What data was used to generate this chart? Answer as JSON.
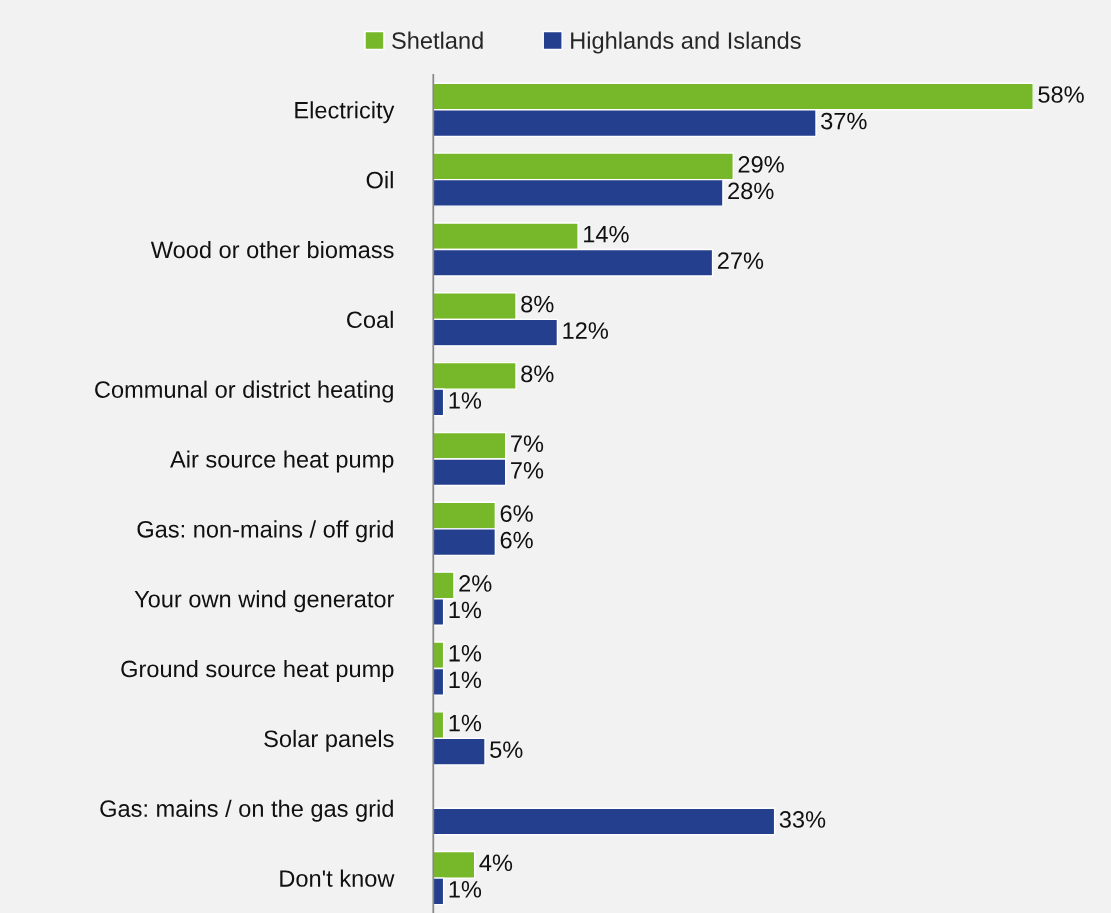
{
  "chart_data": {
    "type": "bar",
    "orientation": "horizontal",
    "categories": [
      "Electricity",
      "Oil",
      "Wood or other biomass",
      "Coal",
      "Communal or district heating",
      "Air source heat pump",
      "Gas: non-mains / off grid",
      "Your own wind generator",
      "Ground source heat pump",
      "Solar panels",
      "Gas: mains / on the gas grid",
      "Don't know"
    ],
    "series": [
      {
        "name": "Shetland",
        "color": "#76b82a",
        "values": [
          58,
          29,
          14,
          8,
          8,
          7,
          6,
          2,
          1,
          1,
          null,
          4
        ],
        "value_labels": [
          "58%",
          "29%",
          "14%",
          "8%",
          "8%",
          "7%",
          "6%",
          "2%",
          "1%",
          "1%",
          null,
          "4%"
        ]
      },
      {
        "name": "Highlands and Islands",
        "color": "#253f8f",
        "values": [
          37,
          28,
          27,
          12,
          1,
          7,
          6,
          1,
          1,
          5,
          33,
          1
        ],
        "value_labels": [
          "37%",
          "28%",
          "27%",
          "12%",
          "1%",
          "7%",
          "6%",
          "1%",
          "1%",
          "5%",
          "33%",
          "1%"
        ]
      }
    ],
    "legend": "top",
    "grid": false
  }
}
